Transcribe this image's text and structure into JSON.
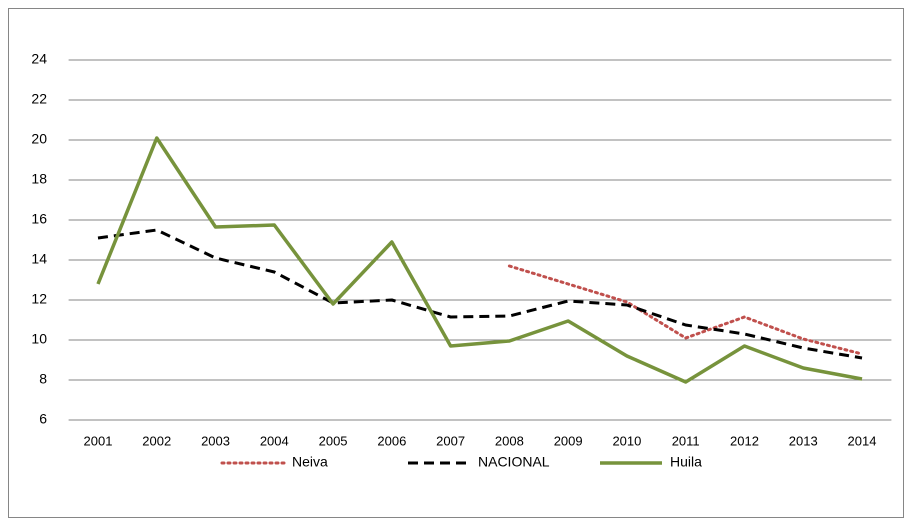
{
  "chart_data": {
    "type": "line",
    "categories": [
      "2001",
      "2002",
      "2003",
      "2004",
      "2005",
      "2006",
      "2007",
      "2008",
      "2009",
      "2010",
      "2011",
      "2012",
      "2013",
      "2014"
    ],
    "series": [
      {
        "name": "Neiva",
        "color": "#c0504d",
        "style": "dotted",
        "values": [
          null,
          null,
          null,
          null,
          null,
          null,
          null,
          13.7,
          12.8,
          11.9,
          10.1,
          11.15,
          10.05,
          9.3
        ]
      },
      {
        "name": "NACIONAL",
        "color": "#000000",
        "style": "dashed",
        "values": [
          15.1,
          15.5,
          14.1,
          13.4,
          11.85,
          12.0,
          11.15,
          11.2,
          11.95,
          11.75,
          10.75,
          10.3,
          9.6,
          9.1
        ]
      },
      {
        "name": "Huila",
        "color": "#77933c",
        "style": "solid",
        "values": [
          12.8,
          20.1,
          15.65,
          15.75,
          11.8,
          14.9,
          9.7,
          9.95,
          10.95,
          9.2,
          7.9,
          9.7,
          8.6,
          8.05
        ]
      }
    ],
    "ylim": [
      6,
      24
    ],
    "yticks": [
      6,
      8,
      10,
      12,
      14,
      16,
      18,
      20,
      22,
      24
    ],
    "grid": true,
    "legend": "bottom"
  }
}
